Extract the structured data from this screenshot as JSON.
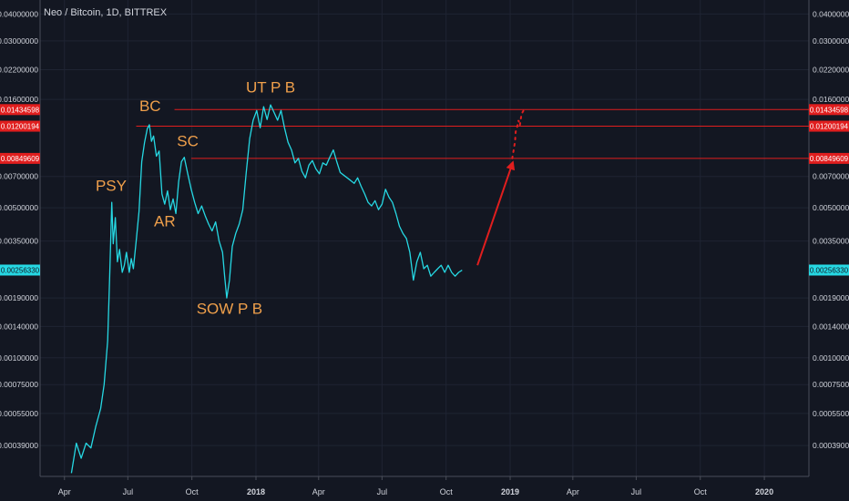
{
  "header": {
    "symbol_title": "Neo / Bitcoin, 1D, BITTREX"
  },
  "colors": {
    "background": "#131722",
    "grid": "#1f2433",
    "axis_text": "#d1d4dc",
    "price_line": "#26d8e3",
    "level_line": "#e01e1e",
    "level_badge": "#e01e1e",
    "current_badge": "#26d8e3",
    "annotation": "#f0a04b",
    "arrow": "#e01e1e"
  },
  "chart_data": {
    "type": "line",
    "title": "Neo / Bitcoin, 1D, BITTREX",
    "scale": "log",
    "ylim": [
      0.00028,
      0.0465
    ],
    "x_ticks": [
      "Apr",
      "Jul",
      "Oct",
      "2018",
      "Apr",
      "Jul",
      "Oct",
      "2019",
      "Apr",
      "Jul",
      "Oct",
      "2020"
    ],
    "x_tick_dates": [
      "2017-04-01",
      "2017-07-01",
      "2017-10-01",
      "2018-01-01",
      "2018-04-01",
      "2018-07-01",
      "2018-10-01",
      "2019-01-01",
      "2019-04-01",
      "2019-07-01",
      "2019-10-01",
      "2020-01-01"
    ],
    "xlim": [
      "2017-02-25",
      "2020-03-05"
    ],
    "y_ticks": [
      {
        "value": 0.04,
        "label": "0.04000000"
      },
      {
        "value": 0.03,
        "label": "0.03000000"
      },
      {
        "value": 0.022,
        "label": "0.02200000"
      },
      {
        "value": 0.016,
        "label": "0.01600000"
      },
      {
        "value": 0.007,
        "label": "0.00700000"
      },
      {
        "value": 0.005,
        "label": "0.00500000"
      },
      {
        "value": 0.0035,
        "label": "0.00350000"
      },
      {
        "value": 0.0019,
        "label": "0.00190000"
      },
      {
        "value": 0.0014,
        "label": "0.00140000"
      },
      {
        "value": 0.001,
        "label": "0.00100000"
      },
      {
        "value": 0.00075,
        "label": "0.00075000"
      },
      {
        "value": 0.00055,
        "label": "0.00055000"
      },
      {
        "value": 0.00039,
        "label": "0.00039000"
      }
    ],
    "levels": [
      {
        "value": 0.01434598,
        "label": "0.01434598",
        "start": "2017-09-06"
      },
      {
        "value": 0.01200194,
        "label": "0.01200194",
        "start": "2017-07-13"
      },
      {
        "value": 0.00849609,
        "label": "0.00849609",
        "start": "2017-09-30"
      }
    ],
    "current_price": {
      "value": 0.0025633,
      "label": "0.00256330"
    },
    "series": [
      {
        "points": [
          [
            "2017-04-11",
            0.00029
          ],
          [
            "2017-04-18",
            0.0004
          ],
          [
            "2017-04-25",
            0.00034
          ],
          [
            "2017-05-02",
            0.0004
          ],
          [
            "2017-05-09",
            0.00038
          ],
          [
            "2017-05-16",
            0.00048
          ],
          [
            "2017-05-23",
            0.00058
          ],
          [
            "2017-05-28",
            0.00075
          ],
          [
            "2017-06-02",
            0.0012
          ],
          [
            "2017-06-05",
            0.0024
          ],
          [
            "2017-06-08",
            0.0053
          ],
          [
            "2017-06-10",
            0.0034
          ],
          [
            "2017-06-13",
            0.0045
          ],
          [
            "2017-06-16",
            0.0028
          ],
          [
            "2017-06-19",
            0.0032
          ],
          [
            "2017-06-23",
            0.0025
          ],
          [
            "2017-06-26",
            0.0027
          ],
          [
            "2017-06-29",
            0.0031
          ],
          [
            "2017-07-03",
            0.0025
          ],
          [
            "2017-07-06",
            0.0029
          ],
          [
            "2017-07-09",
            0.0026
          ],
          [
            "2017-07-13",
            0.0035
          ],
          [
            "2017-07-17",
            0.0048
          ],
          [
            "2017-07-21",
            0.0082
          ],
          [
            "2017-07-25",
            0.0101
          ],
          [
            "2017-07-29",
            0.0117
          ],
          [
            "2017-08-01",
            0.0122
          ],
          [
            "2017-08-04",
            0.0102
          ],
          [
            "2017-08-07",
            0.0108
          ],
          [
            "2017-08-11",
            0.0087
          ],
          [
            "2017-08-15",
            0.0092
          ],
          [
            "2017-08-19",
            0.0058
          ],
          [
            "2017-08-23",
            0.0052
          ],
          [
            "2017-08-27",
            0.006
          ],
          [
            "2017-08-31",
            0.0049
          ],
          [
            "2017-09-04",
            0.0055
          ],
          [
            "2017-09-08",
            0.0047
          ],
          [
            "2017-09-12",
            0.0066
          ],
          [
            "2017-09-16",
            0.0082
          ],
          [
            "2017-09-20",
            0.0086
          ],
          [
            "2017-09-25",
            0.0072
          ],
          [
            "2017-09-30",
            0.0061
          ],
          [
            "2017-10-05",
            0.0053
          ],
          [
            "2017-10-10",
            0.0047
          ],
          [
            "2017-10-15",
            0.0051
          ],
          [
            "2017-10-20",
            0.0046
          ],
          [
            "2017-10-25",
            0.0042
          ],
          [
            "2017-10-30",
            0.0039
          ],
          [
            "2017-11-04",
            0.0043
          ],
          [
            "2017-11-09",
            0.0035
          ],
          [
            "2017-11-14",
            0.0031
          ],
          [
            "2017-11-17",
            0.0024
          ],
          [
            "2017-11-20",
            0.0019
          ],
          [
            "2017-11-24",
            0.0023
          ],
          [
            "2017-11-28",
            0.0033
          ],
          [
            "2017-12-03",
            0.0038
          ],
          [
            "2017-12-08",
            0.0042
          ],
          [
            "2017-12-13",
            0.0049
          ],
          [
            "2017-12-18",
            0.0073
          ],
          [
            "2017-12-23",
            0.0105
          ],
          [
            "2017-12-28",
            0.0128
          ],
          [
            "2018-01-02",
            0.0142
          ],
          [
            "2018-01-07",
            0.0118
          ],
          [
            "2018-01-12",
            0.0148
          ],
          [
            "2018-01-17",
            0.0129
          ],
          [
            "2018-01-22",
            0.0151
          ],
          [
            "2018-01-27",
            0.0139
          ],
          [
            "2018-02-01",
            0.0128
          ],
          [
            "2018-02-06",
            0.0142
          ],
          [
            "2018-02-11",
            0.0118
          ],
          [
            "2018-02-16",
            0.0101
          ],
          [
            "2018-02-21",
            0.0093
          ],
          [
            "2018-02-26",
            0.0081
          ],
          [
            "2018-03-03",
            0.0085
          ],
          [
            "2018-03-08",
            0.0074
          ],
          [
            "2018-03-13",
            0.0069
          ],
          [
            "2018-03-18",
            0.0079
          ],
          [
            "2018-03-23",
            0.0083
          ],
          [
            "2018-03-28",
            0.0076
          ],
          [
            "2018-04-02",
            0.0072
          ],
          [
            "2018-04-07",
            0.0081
          ],
          [
            "2018-04-12",
            0.0079
          ],
          [
            "2018-04-17",
            0.0086
          ],
          [
            "2018-04-22",
            0.0093
          ],
          [
            "2018-04-27",
            0.0082
          ],
          [
            "2018-05-02",
            0.0073
          ],
          [
            "2018-05-07",
            0.0071
          ],
          [
            "2018-05-12",
            0.0069
          ],
          [
            "2018-05-17",
            0.0067
          ],
          [
            "2018-05-22",
            0.0065
          ],
          [
            "2018-05-27",
            0.0069
          ],
          [
            "2018-06-01",
            0.0063
          ],
          [
            "2018-06-06",
            0.0058
          ],
          [
            "2018-06-11",
            0.0053
          ],
          [
            "2018-06-16",
            0.0051
          ],
          [
            "2018-06-21",
            0.0054
          ],
          [
            "2018-06-26",
            0.0049
          ],
          [
            "2018-07-01",
            0.0052
          ],
          [
            "2018-07-06",
            0.0061
          ],
          [
            "2018-07-11",
            0.0056
          ],
          [
            "2018-07-16",
            0.0053
          ],
          [
            "2018-07-21",
            0.0047
          ],
          [
            "2018-07-26",
            0.0041
          ],
          [
            "2018-07-31",
            0.0038
          ],
          [
            "2018-08-05",
            0.0036
          ],
          [
            "2018-08-10",
            0.0031
          ],
          [
            "2018-08-15",
            0.0023
          ],
          [
            "2018-08-20",
            0.0028
          ],
          [
            "2018-08-25",
            0.0031
          ],
          [
            "2018-08-30",
            0.0026
          ],
          [
            "2018-09-04",
            0.0027
          ],
          [
            "2018-09-09",
            0.0024
          ],
          [
            "2018-09-14",
            0.0025
          ],
          [
            "2018-09-19",
            0.0026
          ],
          [
            "2018-09-24",
            0.0027
          ],
          [
            "2018-09-29",
            0.0025
          ],
          [
            "2018-10-04",
            0.0027
          ],
          [
            "2018-10-09",
            0.0025
          ],
          [
            "2018-10-14",
            0.0024
          ],
          [
            "2018-10-19",
            0.0025
          ],
          [
            "2018-10-24",
            0.00256
          ]
        ]
      }
    ],
    "forecast_points": [
      [
        "2019-01-04",
        0.0085
      ],
      [
        "2019-01-06",
        0.0093
      ],
      [
        "2019-01-08",
        0.0102
      ],
      [
        "2019-01-09",
        0.0113
      ],
      [
        "2019-01-11",
        0.0119
      ],
      [
        "2019-01-13",
        0.0128
      ],
      [
        "2019-01-15",
        0.0121
      ],
      [
        "2019-01-17",
        0.0135
      ],
      [
        "2019-01-19",
        0.014
      ],
      [
        "2019-01-22",
        0.0145
      ]
    ],
    "annotations": [
      {
        "text": "PSY",
        "date": "2017-06-07",
        "value": 0.006
      },
      {
        "text": "BC",
        "date": "2017-08-02",
        "value": 0.0141
      },
      {
        "text": "SC",
        "date": "2017-09-25",
        "value": 0.0097
      },
      {
        "text": "AR",
        "date": "2017-08-23",
        "value": 0.0041
      },
      {
        "text": "SOW P B",
        "date": "2017-11-24",
        "value": 0.0016
      },
      {
        "text": "UT P B",
        "date": "2018-01-22",
        "value": 0.0172
      }
    ],
    "arrow": {
      "from": [
        "2018-11-15",
        0.0027
      ],
      "to": [
        "2019-01-04",
        0.008
      ]
    }
  }
}
